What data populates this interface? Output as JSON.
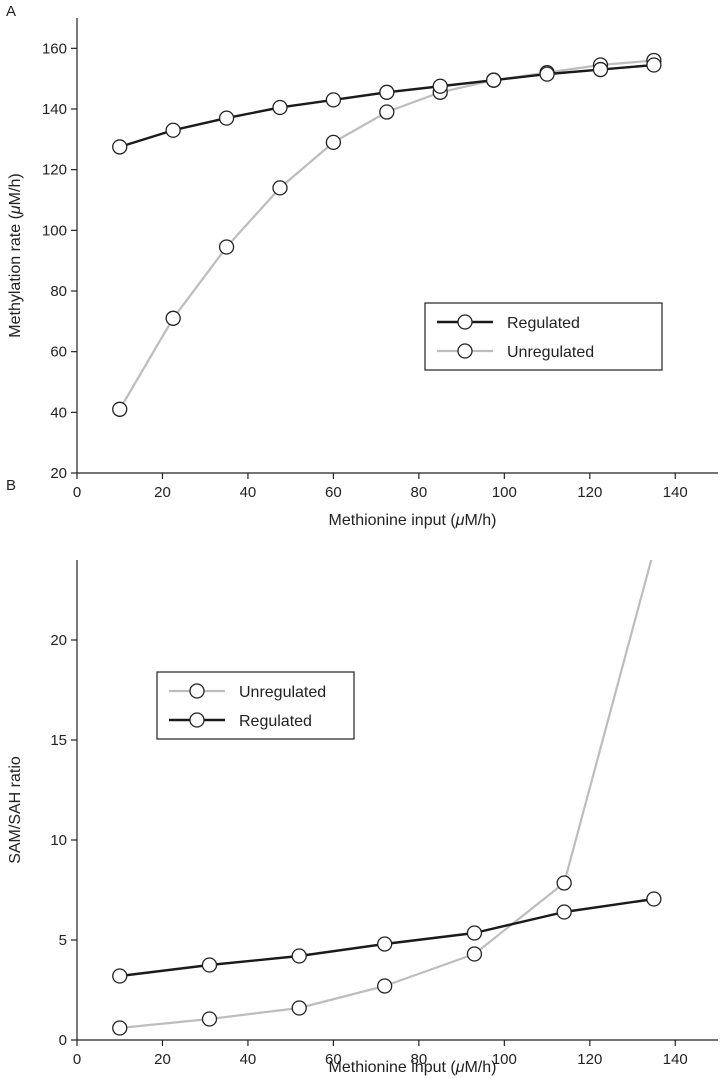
{
  "chart_data": [
    {
      "panel_label": "A",
      "type": "line",
      "xlabel": "Methionine input (μM/h)",
      "ylabel": "Methylation rate (μM/h)",
      "xlim": [
        0,
        150
      ],
      "ylim": [
        20,
        170
      ],
      "xticks": [
        "0",
        "20",
        "40",
        "60",
        "80",
        "100",
        "120",
        "140"
      ],
      "yticks": [
        "20",
        "40",
        "60",
        "80",
        "100",
        "120",
        "140",
        "160"
      ],
      "grid": false,
      "legend_position": "center-right",
      "series": [
        {
          "name": "Regulated",
          "color": "#1a1a1a",
          "x": [
            10,
            22.5,
            35,
            47.5,
            60,
            72.5,
            85,
            97.5,
            110,
            122.5,
            135
          ],
          "y": [
            127.5,
            133,
            137,
            140.5,
            143,
            145.5,
            147.5,
            149.5,
            151.5,
            153,
            154.5
          ]
        },
        {
          "name": "Unregulated",
          "color": "#bdbdbd",
          "x": [
            10,
            22.5,
            35,
            47.5,
            60,
            72.5,
            85,
            97.5,
            110,
            122.5,
            135
          ],
          "y": [
            41,
            71,
            94.5,
            114,
            129,
            139,
            145.5,
            149.5,
            152,
            154.5,
            156
          ]
        }
      ]
    },
    {
      "panel_label": "B",
      "type": "line",
      "xlabel": "Methionine input (μM/h)",
      "ylabel": "SAM/SAH ratio",
      "xlim": [
        0,
        150
      ],
      "ylim": [
        0,
        24
      ],
      "xticks": [
        "0",
        "20",
        "40",
        "60",
        "80",
        "100",
        "120",
        "140"
      ],
      "yticks": [
        "0",
        "5",
        "10",
        "15",
        "20"
      ],
      "grid": false,
      "legend_position": "top-left",
      "series": [
        {
          "name": "Unregulated",
          "color": "#bdbdbd",
          "x": [
            10,
            31,
            52,
            72,
            93,
            114,
            135
          ],
          "y": [
            0.6,
            1.05,
            1.6,
            2.7,
            4.3,
            7.85,
            24.5
          ]
        },
        {
          "name": "Regulated",
          "color": "#1a1a1a",
          "x": [
            10,
            31,
            52,
            72,
            93,
            114,
            135
          ],
          "y": [
            3.2,
            3.75,
            4.2,
            4.8,
            5.35,
            6.4,
            7.05
          ]
        }
      ]
    }
  ]
}
